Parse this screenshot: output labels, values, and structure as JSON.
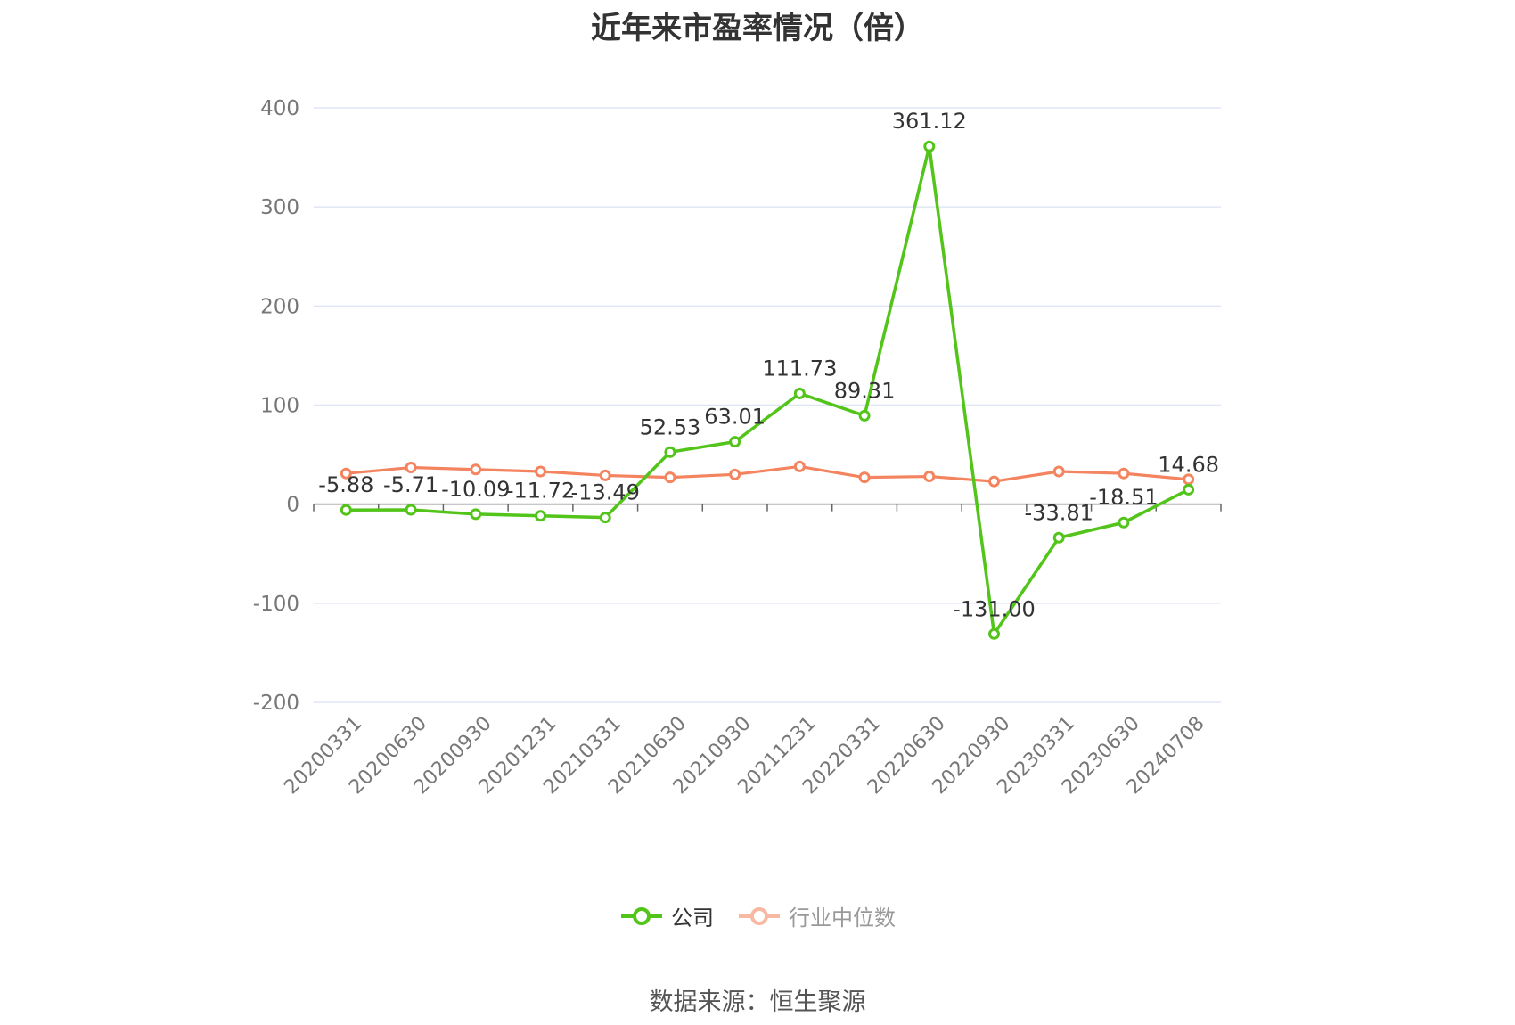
{
  "title": "近年来市盈率情况（倍）",
  "source": "数据来源：恒生聚源",
  "colors": {
    "company": "#52c41a",
    "industry": "#f4845f",
    "industry_legend": "#f7b9a3",
    "grid": "#dfe6f3",
    "axis": "#666666",
    "tick_text": "#777777",
    "label_text": "#333333"
  },
  "legend": [
    {
      "name": "公司",
      "color": "#52c41a",
      "active": true
    },
    {
      "name": "行业中位数",
      "color": "#f7b9a3",
      "active": false
    }
  ],
  "chart_data": {
    "type": "line",
    "categories": [
      "20200331",
      "20200630",
      "20200930",
      "20201231",
      "20210331",
      "20210630",
      "20210930",
      "20211231",
      "20220331",
      "20220630",
      "20220930",
      "20230331",
      "20230630",
      "20240708"
    ],
    "ylim": [
      -200,
      400
    ],
    "yticks": [
      400,
      300,
      200,
      100,
      0,
      -100,
      -200
    ],
    "grid": true,
    "legend_position": "bottom",
    "series": [
      {
        "name": "公司",
        "values": [
          -5.88,
          -5.71,
          -10.09,
          -11.72,
          -13.49,
          52.53,
          63.01,
          111.73,
          89.31,
          361.12,
          -131.0,
          -33.81,
          -18.51,
          14.68
        ],
        "labels": [
          "-5.88",
          "-5.71",
          "-10.09",
          "-11.72",
          "-13.49",
          "52.53",
          "63.01",
          "111.73",
          "89.31",
          "361.12",
          "-131.00",
          "-33.81",
          "-18.51",
          "14.68"
        ]
      },
      {
        "name": "行业中位数",
        "values": [
          31,
          37,
          35,
          33,
          29,
          27,
          30,
          38,
          27,
          28,
          23,
          33,
          31,
          25
        ]
      }
    ]
  }
}
